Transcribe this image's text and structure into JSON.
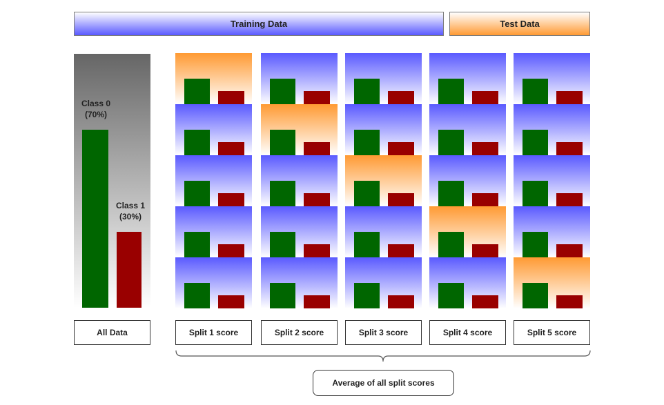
{
  "header": {
    "training": "Training Data",
    "test": "Test Data"
  },
  "all_data": {
    "class0": {
      "name": "Class 0",
      "pct": "(70%)",
      "share": 0.7
    },
    "class1": {
      "name": "Class 1",
      "pct": "(30%)",
      "share": 0.3
    },
    "label": "All Data"
  },
  "splits": [
    {
      "label": "Split 1 score",
      "test_fold": 1
    },
    {
      "label": "Split 2 score",
      "test_fold": 2
    },
    {
      "label": "Split 3 score",
      "test_fold": 3
    },
    {
      "label": "Split 4 score",
      "test_fold": 4
    },
    {
      "label": "Split 5 score",
      "test_fold": 5
    }
  ],
  "folds_per_split": 5,
  "summary": "Average of all split scores",
  "colors": {
    "training": "#5a5aff",
    "test": "#ff9a33",
    "class0": "#006600",
    "class1": "#990000",
    "all_data_top": "#666666"
  }
}
